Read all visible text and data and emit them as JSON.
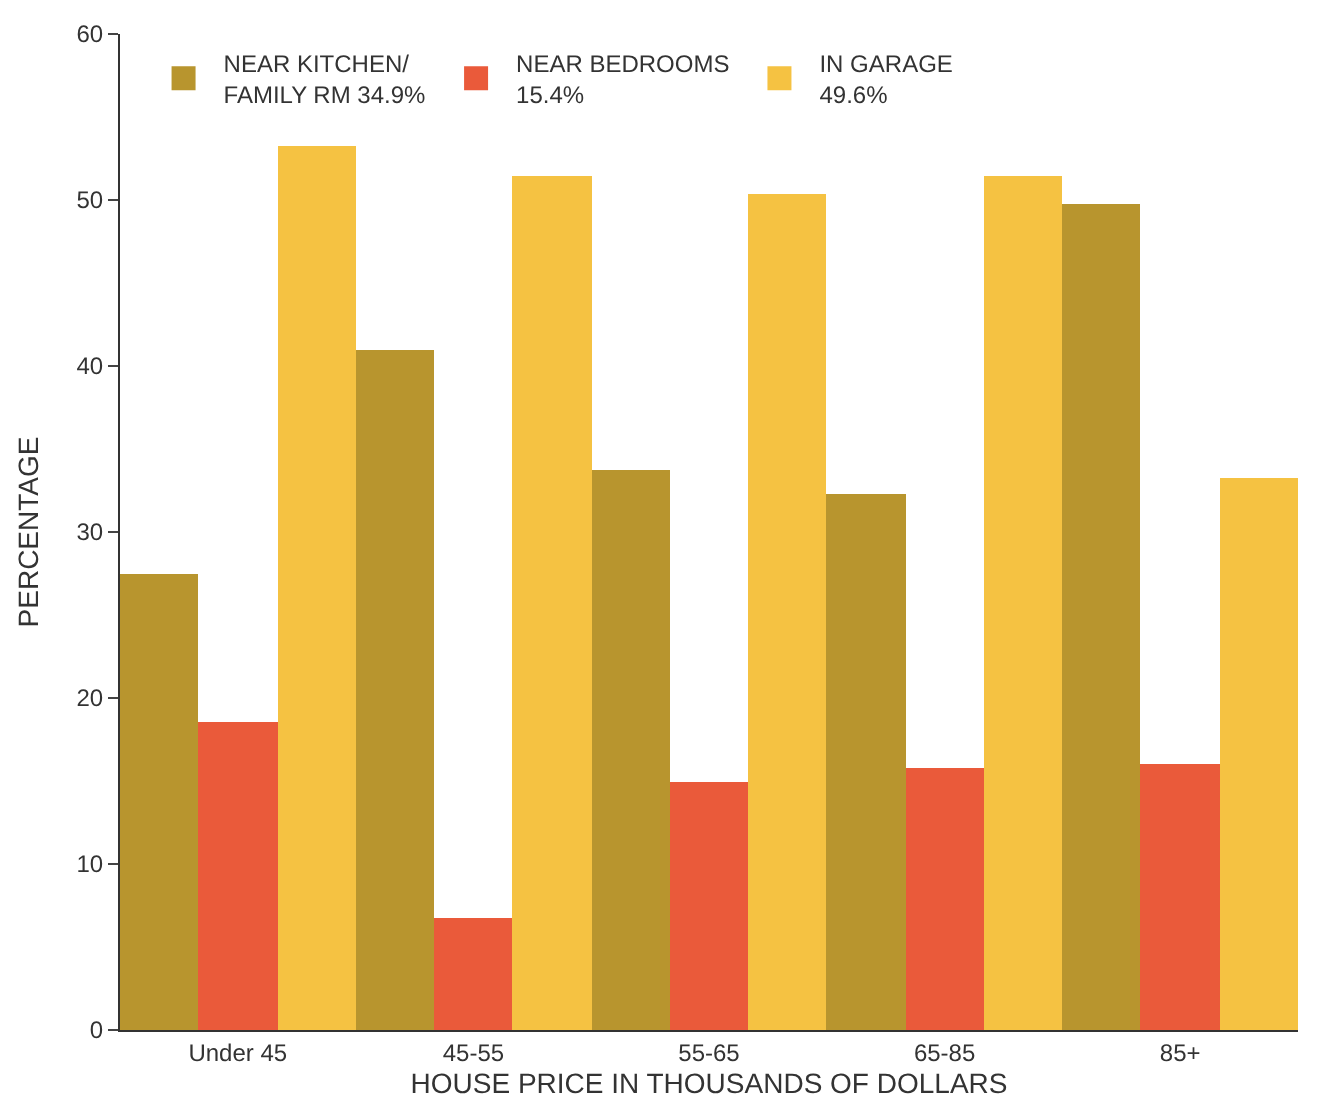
{
  "chart_data": {
    "type": "bar",
    "xlabel": "HOUSE PRICE IN THOUSANDS OF DOLLARS",
    "ylabel": "PERCENTAGE",
    "categories": [
      "Under 45",
      "45-55",
      "55-65",
      "65-85",
      "85+"
    ],
    "series": [
      {
        "name": "NEAR KITCHEN/\nFAMILY RM 34.9%",
        "color": "#b8952e",
        "values": [
          27.5,
          41.0,
          33.7,
          32.3,
          49.7
        ]
      },
      {
        "name": "NEAR BEDROOMS\n15.4%",
        "color": "#ea5a3a",
        "values": [
          18.5,
          6.8,
          14.9,
          15.8,
          16.0
        ]
      },
      {
        "name": "IN GARAGE\n49.6%",
        "color": "#f5c242",
        "values": [
          53.3,
          51.4,
          50.4,
          51.4,
          33.3
        ]
      }
    ],
    "ylim": [
      0,
      60
    ],
    "yticks": [
      0,
      10,
      20,
      30,
      40,
      50,
      60
    ],
    "legend": "top"
  }
}
